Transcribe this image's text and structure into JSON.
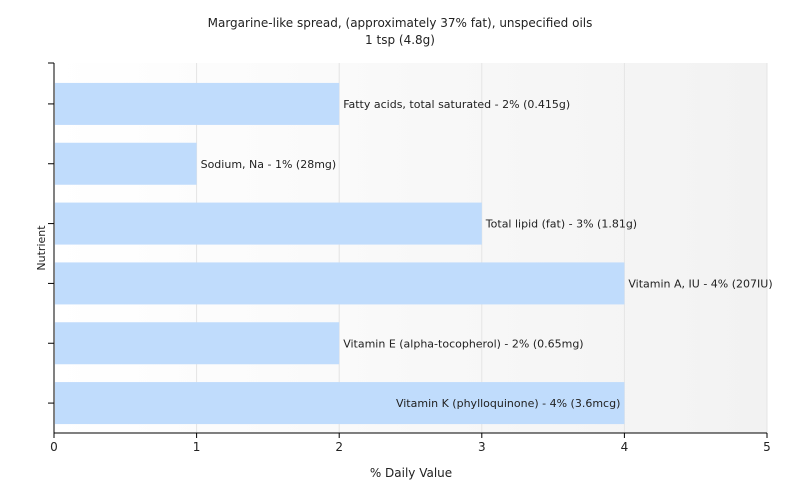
{
  "chart_data": {
    "type": "bar",
    "orientation": "horizontal",
    "title": "Margarine-like spread, (approximately 37% fat), unspecified oils",
    "subtitle": "1 tsp (4.8g)",
    "xlabel": "% Daily Value",
    "ylabel": "Nutrient",
    "xlim": [
      0,
      5
    ],
    "xticks": [
      "0",
      "1",
      "2",
      "3",
      "4",
      "5"
    ],
    "grid": true,
    "bar_color": "#c0dcfc",
    "categories": [
      "Fatty acids, total saturated",
      "Sodium, Na",
      "Total lipid (fat)",
      "Vitamin A, IU",
      "Vitamin E (alpha-tocopherol)",
      "Vitamin K (phylloquinone)"
    ],
    "values": [
      2,
      1,
      3,
      4,
      2,
      4
    ],
    "labels": [
      "Fatty acids, total saturated - 2% (0.415g)",
      "Sodium, Na - 1% (28mg)",
      "Total lipid (fat) - 3% (1.81g)",
      "Vitamin A, IU - 4% (207IU)",
      "Vitamin E (alpha-tocopherol) - 2% (0.65mg)",
      "Vitamin K (phylloquinone) - 4% (3.6mcg)"
    ]
  }
}
